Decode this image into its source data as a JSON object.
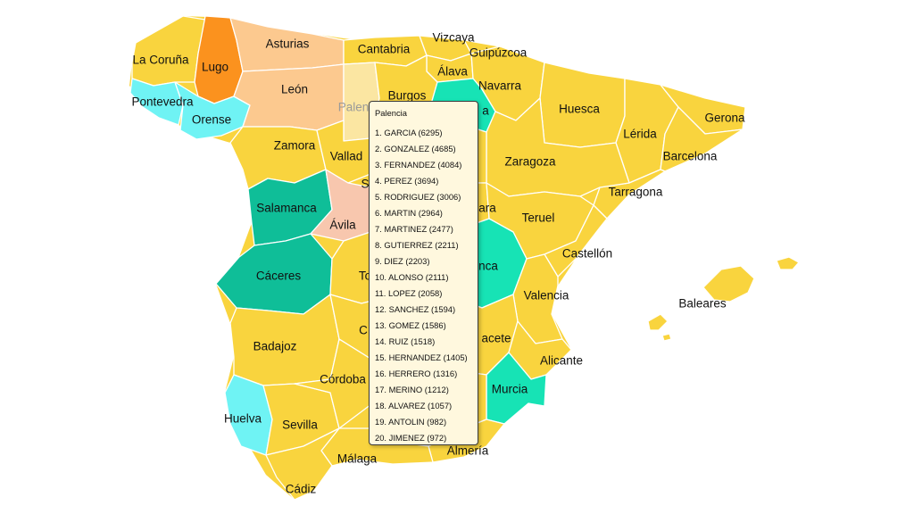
{
  "colors": {
    "default": "#f9d43e",
    "peach": "#fcc98f",
    "orange": "#fb921e",
    "cyan": "#6ff3f4",
    "teal": "#0fbe98",
    "teal_light": "#17e3b5",
    "pale": "#fbe6a2",
    "pink": "#f8c7ae"
  },
  "labels": {
    "la_coruna": "La Coruña",
    "lugo": "Lugo",
    "asturias": "Asturias",
    "cantabria": "Cantabria",
    "vizcaya": "Vizcaya",
    "guipuzcoa": "Guipúzcoa",
    "alava": "Álava",
    "navarra": "Navarra",
    "pontevedra": "Pontevedra",
    "orense": "Orense",
    "leon": "León",
    "palencia_partial": "Palen",
    "burgos": "Burgos",
    "rioja_partial": "a",
    "huesca": "Huesca",
    "gerona": "Gerona",
    "lerida": "Lérida",
    "barcelona": "Barcelona",
    "zamora": "Zamora",
    "valladolid_partial": "Vallad",
    "segovia_partial": "S",
    "zaragoza": "Zaragoza",
    "tarragona": "Tarragona",
    "salamanca": "Salamanca",
    "avila": "Ávila",
    "guadalajara_partial": "ara",
    "teruel": "Teruel",
    "castellon": "Castellón",
    "caceres": "Cáceres",
    "toledo_partial": "To",
    "cuenca_partial": "nca",
    "valencia": "Valencia",
    "baleares": "Baleares",
    "ciudad_real_partial": "C",
    "albacete_partial": "acete",
    "badajoz": "Badajoz",
    "alicante": "Alicante",
    "cordoba_partial": "Córdoba",
    "murcia": "Murcia",
    "huelva": "Huelva",
    "sevilla": "Sevilla",
    "malaga": "Málaga",
    "almeria_partial": "Almería",
    "cadiz": "Cádiz"
  },
  "tooltip": {
    "title": "Palencia",
    "items": [
      "1. GARCIA (6295)",
      "2. GONZALEZ (4685)",
      "3. FERNANDEZ (4084)",
      "4. PEREZ (3694)",
      "5. RODRIGUEZ (3006)",
      "6. MARTIN (2964)",
      "7. MARTINEZ (2477)",
      "8. GUTIERREZ (2211)",
      "9. DIEZ (2203)",
      "10. ALONSO (2111)",
      "11. LOPEZ (2058)",
      "12. SANCHEZ (1594)",
      "13. GOMEZ (1586)",
      "14. RUIZ (1518)",
      "15. HERNANDEZ (1405)",
      "16. HERRERO (1316)",
      "17. MERINO (1212)",
      "18. ALVAREZ (1057)",
      "19. ANTOLIN (982)",
      "20. JIMENEZ (972)"
    ]
  }
}
